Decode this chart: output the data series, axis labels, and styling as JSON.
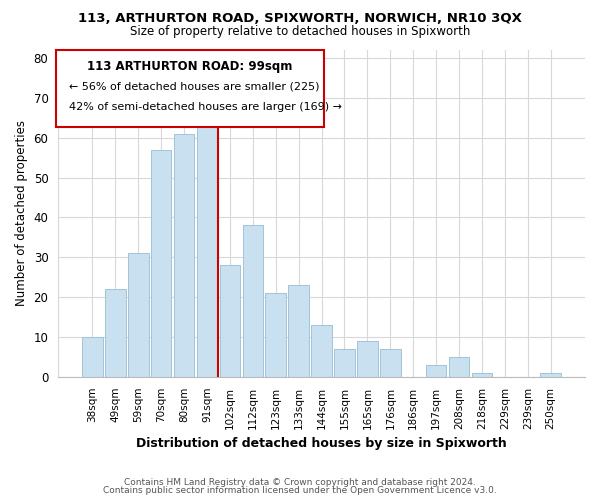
{
  "title": "113, ARTHURTON ROAD, SPIXWORTH, NORWICH, NR10 3QX",
  "subtitle": "Size of property relative to detached houses in Spixworth",
  "xlabel": "Distribution of detached houses by size in Spixworth",
  "ylabel": "Number of detached properties",
  "footer_line1": "Contains HM Land Registry data © Crown copyright and database right 2024.",
  "footer_line2": "Contains public sector information licensed under the Open Government Licence v3.0.",
  "bar_labels": [
    "38sqm",
    "49sqm",
    "59sqm",
    "70sqm",
    "80sqm",
    "91sqm",
    "102sqm",
    "112sqm",
    "123sqm",
    "133sqm",
    "144sqm",
    "155sqm",
    "165sqm",
    "176sqm",
    "186sqm",
    "197sqm",
    "208sqm",
    "218sqm",
    "229sqm",
    "239sqm",
    "250sqm"
  ],
  "bar_heights": [
    10,
    22,
    31,
    57,
    61,
    65,
    28,
    38,
    21,
    23,
    13,
    7,
    9,
    7,
    0,
    3,
    5,
    1,
    0,
    0,
    1
  ],
  "bar_color": "#c8e0ef",
  "bar_edge_color": "#a0c4d8",
  "vline_color": "#cc0000",
  "ylim": [
    0,
    82
  ],
  "yticks": [
    0,
    10,
    20,
    30,
    40,
    50,
    60,
    70,
    80
  ],
  "annotation_title": "113 ARTHURTON ROAD: 99sqm",
  "annotation_line1": "← 56% of detached houses are smaller (225)",
  "annotation_line2": "42% of semi-detached houses are larger (169) →",
  "background_color": "#ffffff",
  "grid_color": "#d8d8d8",
  "ann_box_edgecolor": "#cc0000",
  "vline_at_bar": 6
}
